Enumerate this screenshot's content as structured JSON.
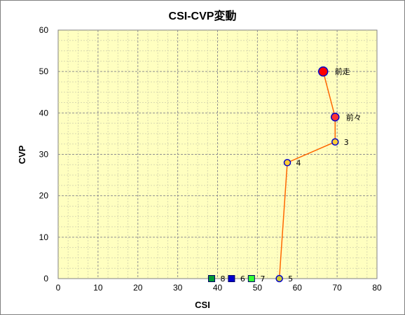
{
  "chart_data": {
    "type": "scatter",
    "title": "CSI-CVP変動",
    "xlabel": "CSI",
    "ylabel": "CVP",
    "xlim": [
      0,
      80
    ],
    "ylim": [
      0,
      60
    ],
    "xticks": [
      0,
      10,
      20,
      30,
      40,
      50,
      60,
      70,
      80
    ],
    "yticks": [
      0,
      10,
      20,
      30,
      40,
      50,
      60
    ],
    "grid": true,
    "legend": "none",
    "colors": {
      "plot_background": "#ffffc0",
      "line": "#ff6600",
      "circle_fill": "#ffcc33",
      "circle_stroke": "#0000cc",
      "latest_fill": "#ff0000"
    },
    "line_series": {
      "x": [
        66.5,
        69.5,
        69.5,
        57.5,
        55.5
      ],
      "y": [
        50,
        39,
        33,
        28,
        0
      ]
    },
    "points": [
      {
        "label": "前走",
        "x": 66.5,
        "y": 50,
        "shape": "circle",
        "size": "large",
        "fill": "#ff0000"
      },
      {
        "label": "前々",
        "x": 69.5,
        "y": 39,
        "shape": "circle",
        "size": "medium",
        "fill": "#ff3333"
      },
      {
        "label": "3",
        "x": 69.5,
        "y": 33,
        "shape": "circle",
        "size": "small",
        "fill": "#ffcc33"
      },
      {
        "label": "4",
        "x": 57.5,
        "y": 28,
        "shape": "circle",
        "size": "small",
        "fill": "#ffcc33"
      },
      {
        "label": "5",
        "x": 55.5,
        "y": 0,
        "shape": "circle",
        "size": "small",
        "fill": "#cccc33"
      },
      {
        "label": "6",
        "x": 43.5,
        "y": 0,
        "shape": "square",
        "size": "small",
        "fill": "#0000cc"
      },
      {
        "label": "7",
        "x": 48.5,
        "y": 0,
        "shape": "square",
        "size": "small",
        "fill": "#33ff33"
      },
      {
        "label": "8",
        "x": 38.5,
        "y": 0,
        "shape": "square",
        "size": "small",
        "fill": "#009933"
      }
    ]
  }
}
